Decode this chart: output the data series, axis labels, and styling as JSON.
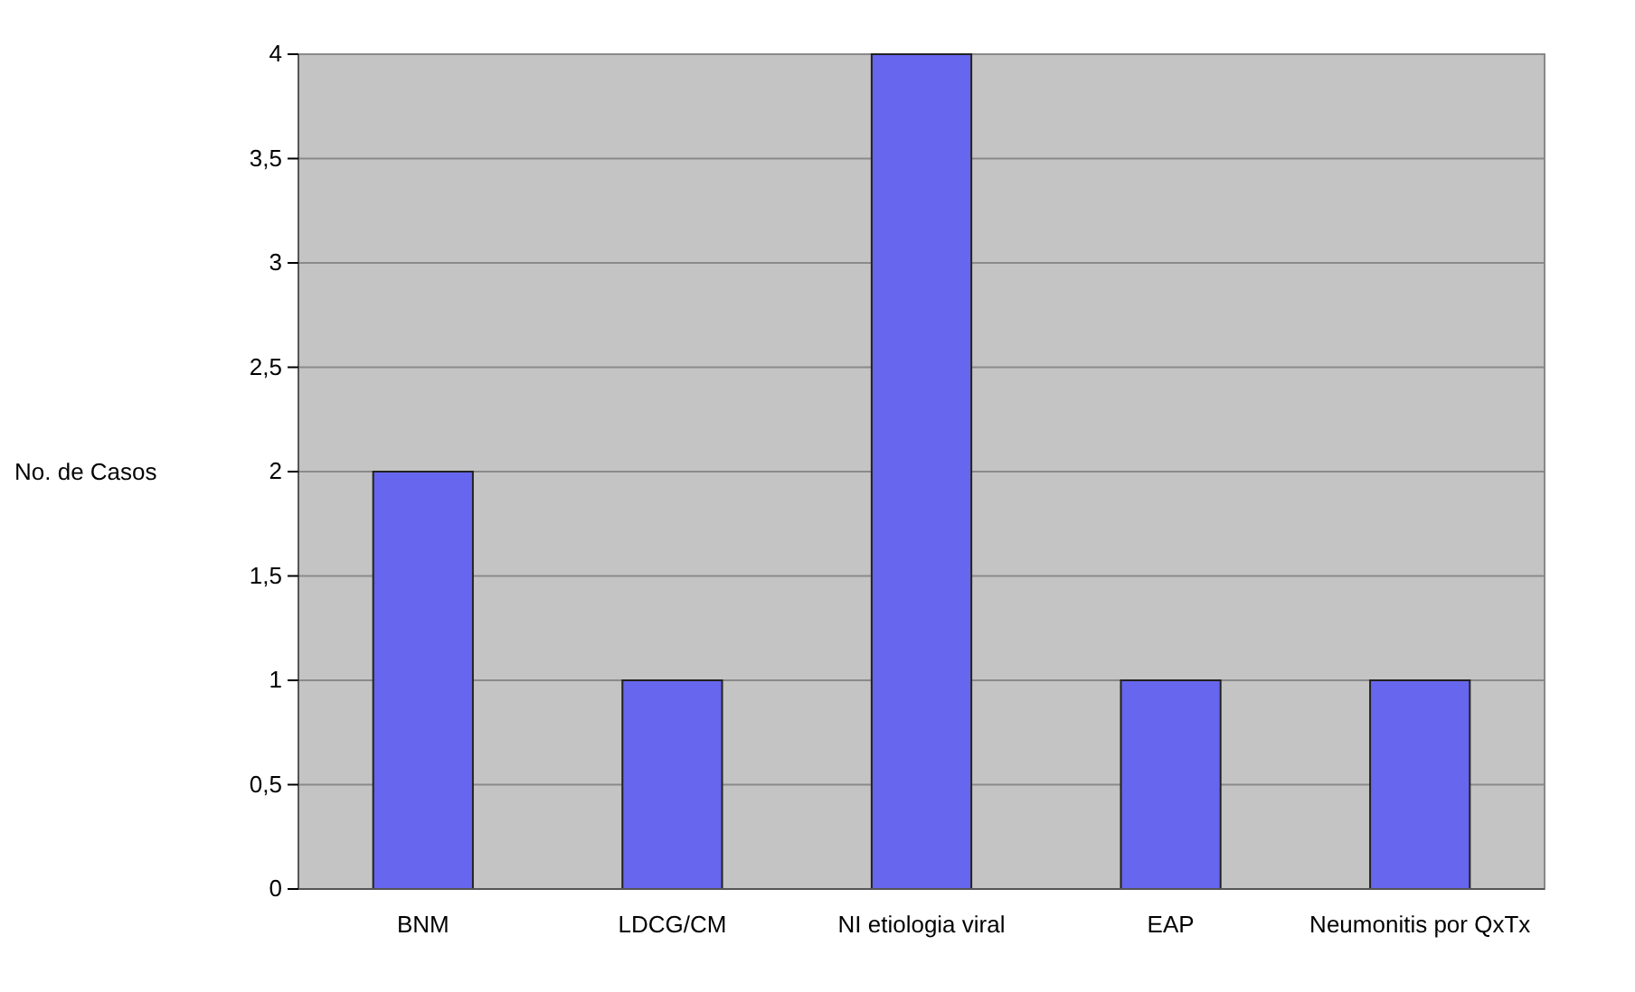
{
  "chart_data": {
    "type": "bar",
    "ylabel": "No. de Casos",
    "categories": [
      "BNM",
      "LDCG/CM",
      "NI etiologia viral",
      "EAP",
      "Neumonitis por QxTx"
    ],
    "values": [
      2,
      1,
      4,
      1,
      1
    ],
    "color": "#6666ee",
    "ylim": [
      0,
      4
    ],
    "yticks": [
      0,
      {
        "value": 0.5,
        "label": "0,5"
      },
      1,
      {
        "value": 1.5,
        "label": "1,5"
      },
      2,
      {
        "value": 2.5,
        "label": "2,5"
      },
      3,
      {
        "value": 3.5,
        "label": "3,5"
      },
      4
    ],
    "grid": "y"
  }
}
